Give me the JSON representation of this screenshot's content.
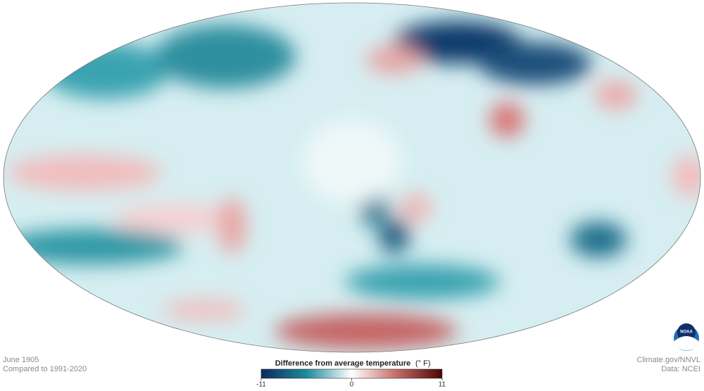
{
  "map": {
    "date": "June 1905",
    "baseline": "Compared to 1991-2020",
    "legend": {
      "title": "Difference from average temperature",
      "unit": "(° F)",
      "range": [
        -11,
        11
      ],
      "ticks": [
        -11,
        0,
        11
      ],
      "colors": [
        "#0d2a5c",
        "#1d8a99",
        "#ffffff",
        "#c46a66",
        "#4a0606"
      ]
    },
    "credit": "Climate.gov/NNVL",
    "source": "Data: NCEI",
    "logo": "NOAA"
  }
}
